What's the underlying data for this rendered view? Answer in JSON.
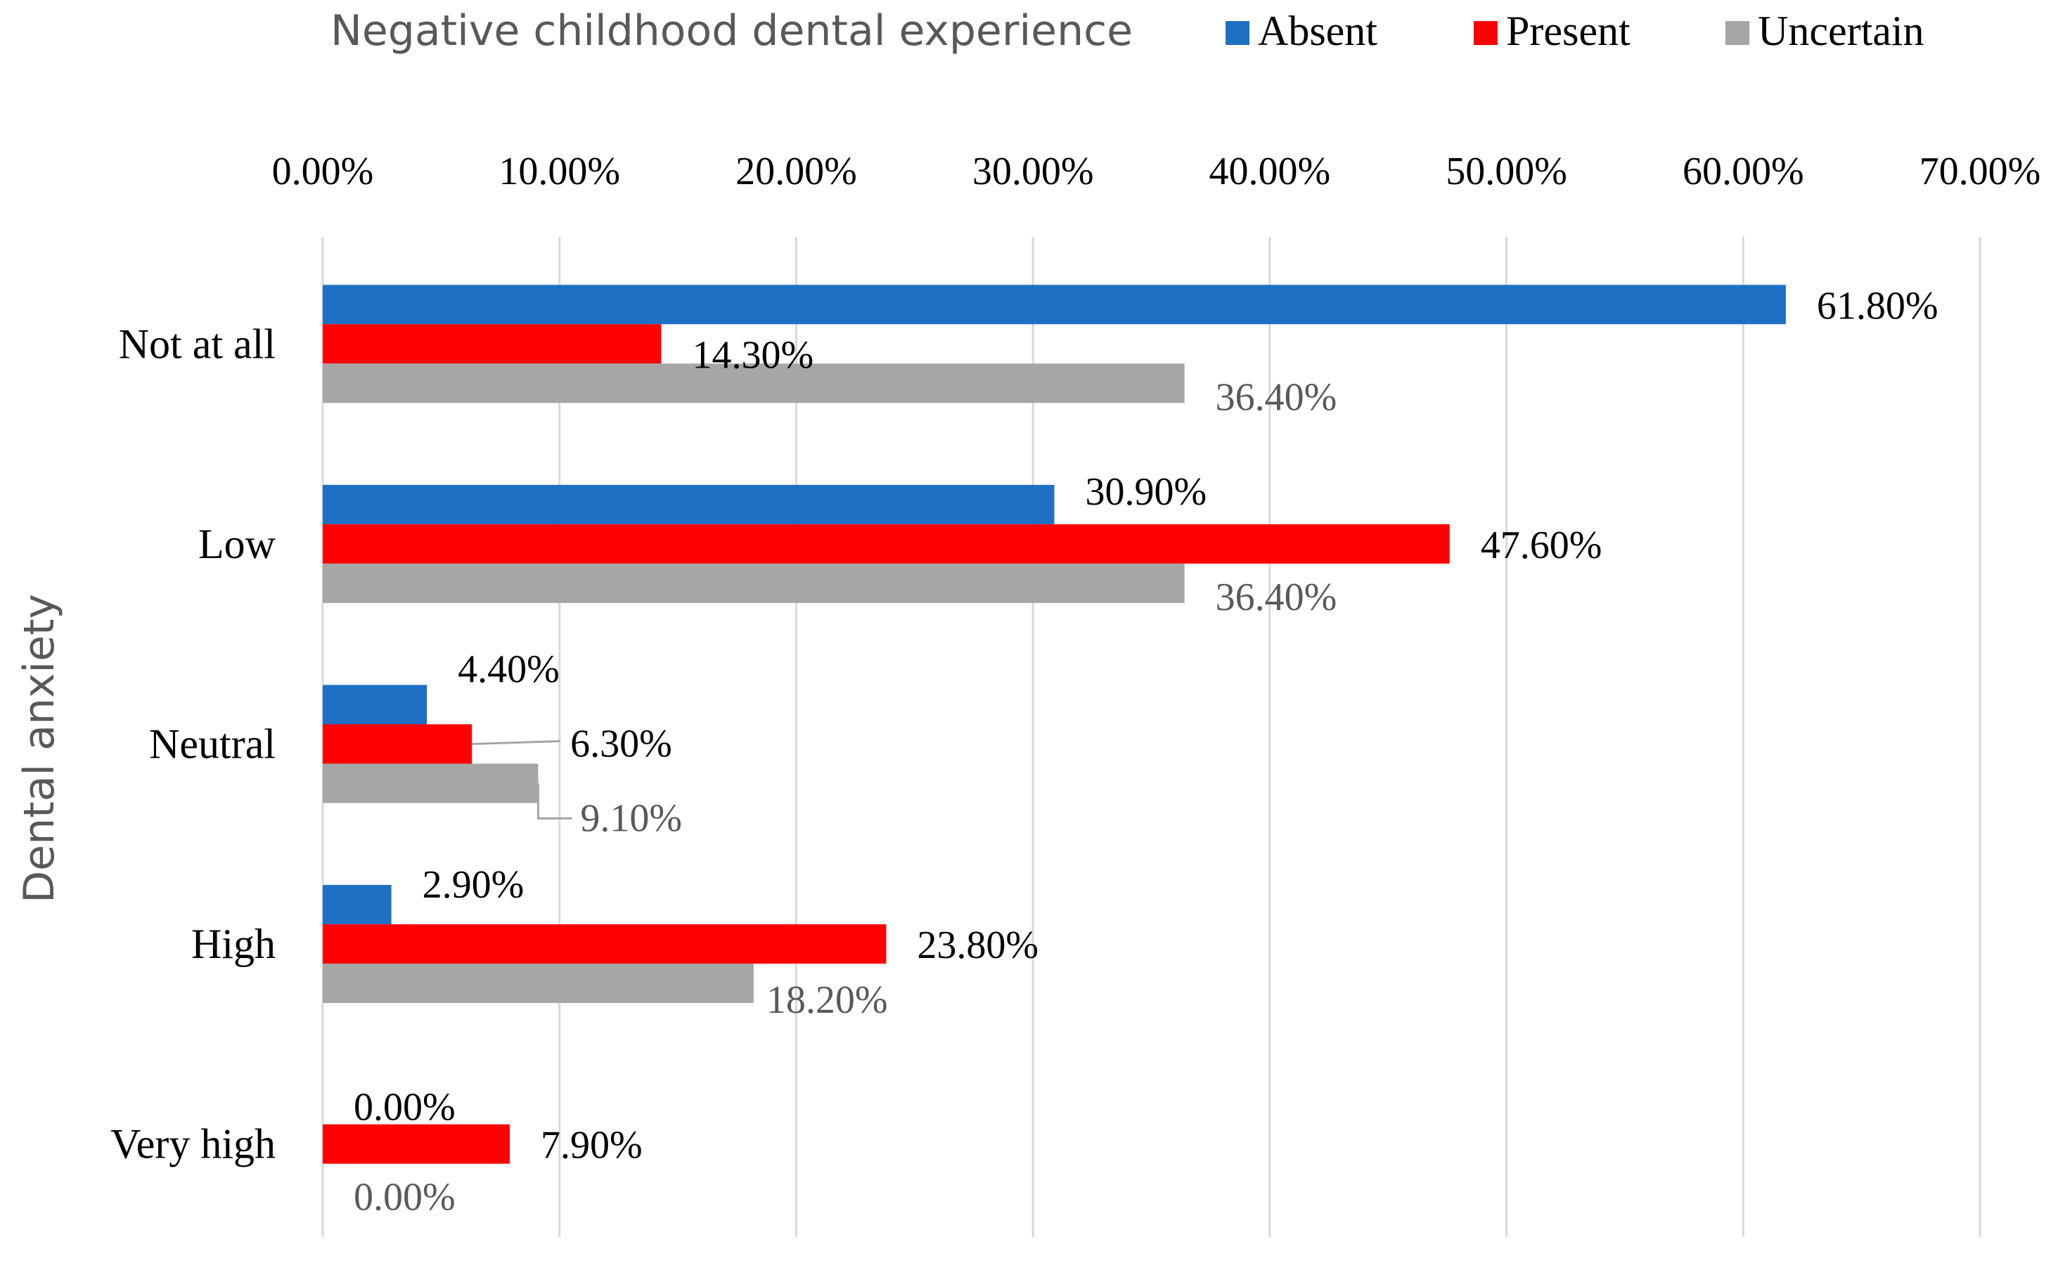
{
  "chart_data": {
    "type": "bar",
    "orientation": "horizontal",
    "legend_title": "Negative childhood dental experience",
    "legend_position": "top",
    "ylabel": "Dental anxiety",
    "categories": [
      "Not at all",
      "Low",
      "Neutral",
      "High",
      "Very high"
    ],
    "x_ticks": [
      "0.00%",
      "10.00%",
      "20.00%",
      "30.00%",
      "40.00%",
      "50.00%",
      "60.00%",
      "70.00%"
    ],
    "xlim": [
      0,
      70
    ],
    "grid": "vertical",
    "series": [
      {
        "name": "Absent",
        "color": "#1f6fc5",
        "values": [
          61.8,
          30.9,
          4.4,
          2.9,
          0.0
        ],
        "labels": [
          "61.80%",
          "30.90%",
          "4.40%",
          "2.90%",
          "0.00%"
        ]
      },
      {
        "name": "Present",
        "color": "#ff0000",
        "values": [
          14.3,
          47.6,
          6.3,
          23.8,
          7.9
        ],
        "labels": [
          "14.30%",
          "47.60%",
          "6.30%",
          "23.80%",
          "7.90%"
        ]
      },
      {
        "name": "Uncertain",
        "color": "#a6a6a6",
        "values": [
          36.4,
          36.4,
          9.1,
          18.2,
          0.0
        ],
        "labels": [
          "36.40%",
          "36.40%",
          "9.10%",
          "18.20%",
          "0.00%"
        ]
      }
    ],
    "label_colors": [
      "#000000",
      "#000000",
      "#595959"
    ]
  }
}
